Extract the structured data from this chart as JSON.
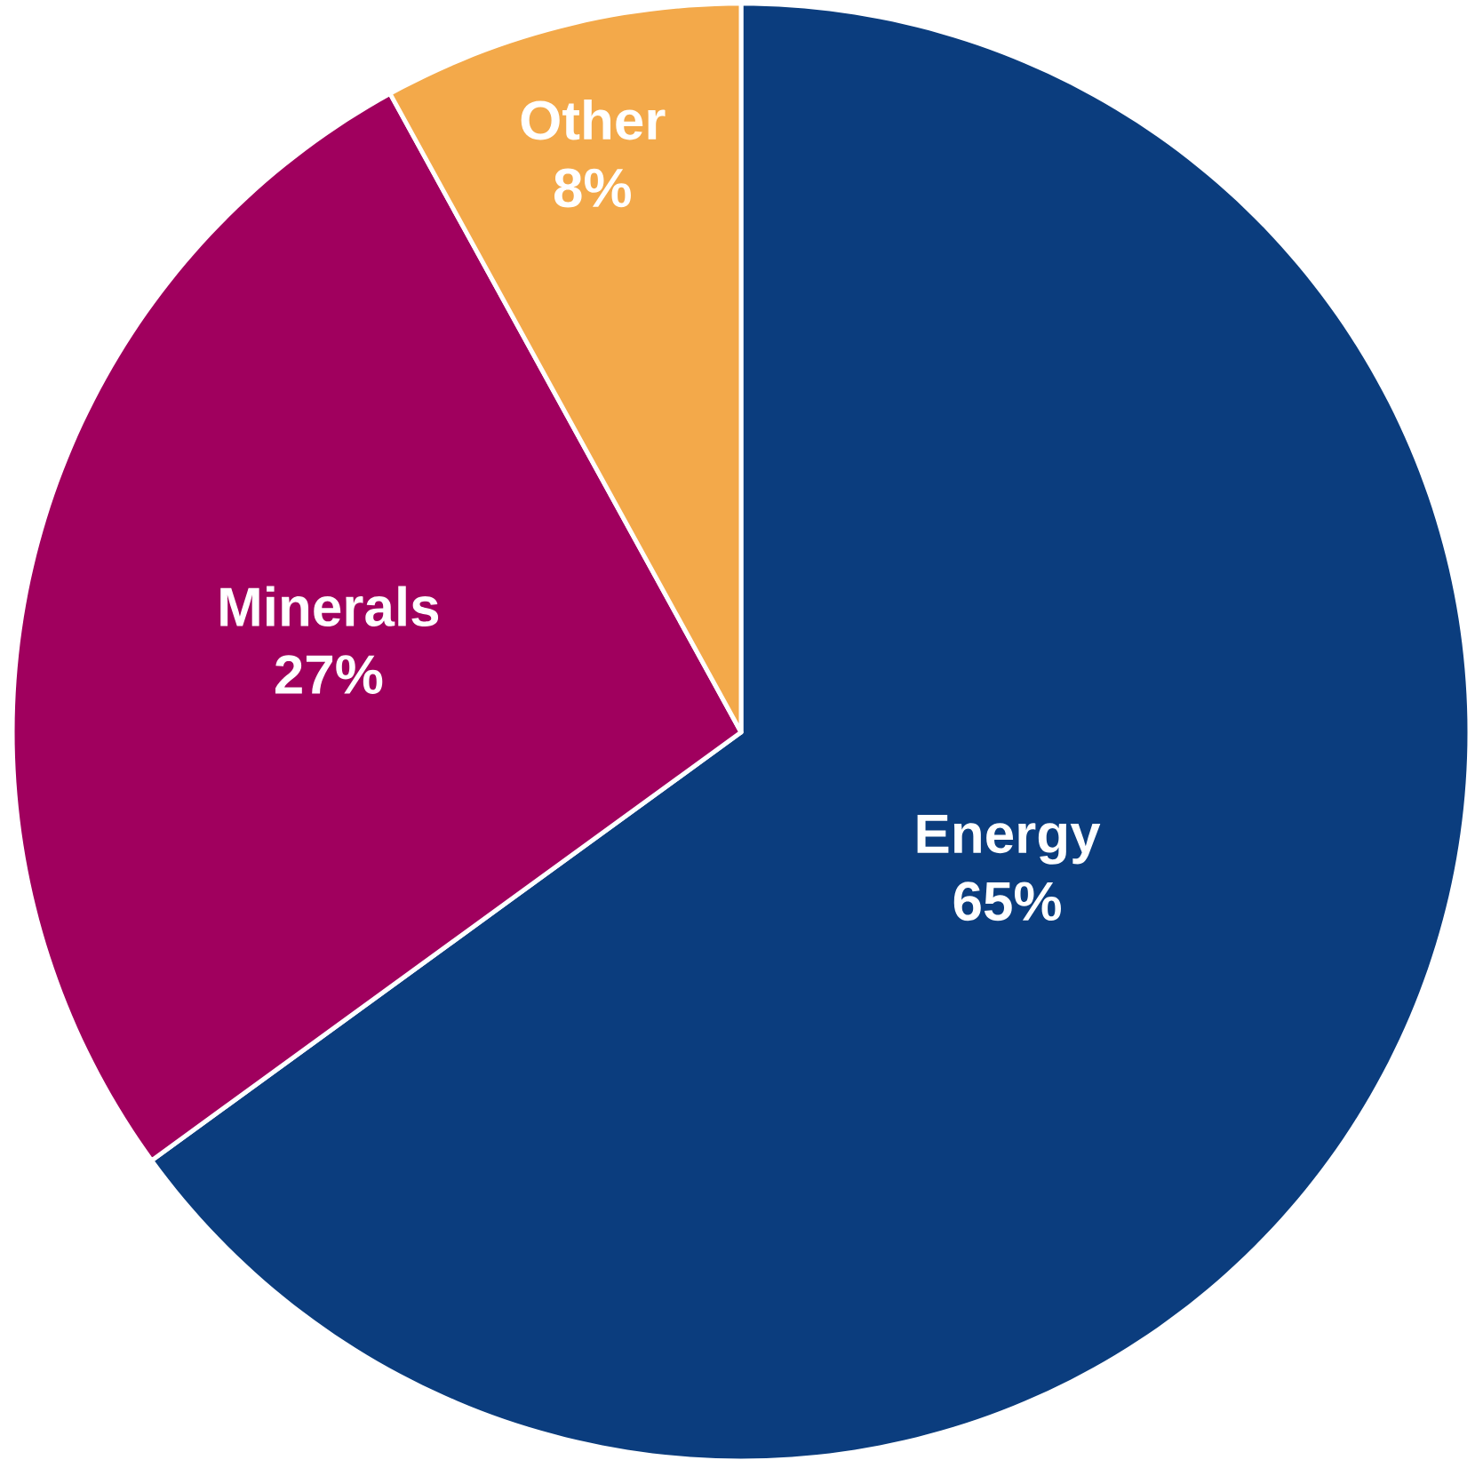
{
  "chart_data": {
    "type": "pie",
    "categories": [
      "Energy",
      "Minerals",
      "Other"
    ],
    "values": [
      65,
      27,
      8
    ],
    "value_labels": [
      "65%",
      "27%",
      "8%"
    ],
    "colors": [
      "#0b3d7e",
      "#a0005e",
      "#f3a94a"
    ]
  }
}
